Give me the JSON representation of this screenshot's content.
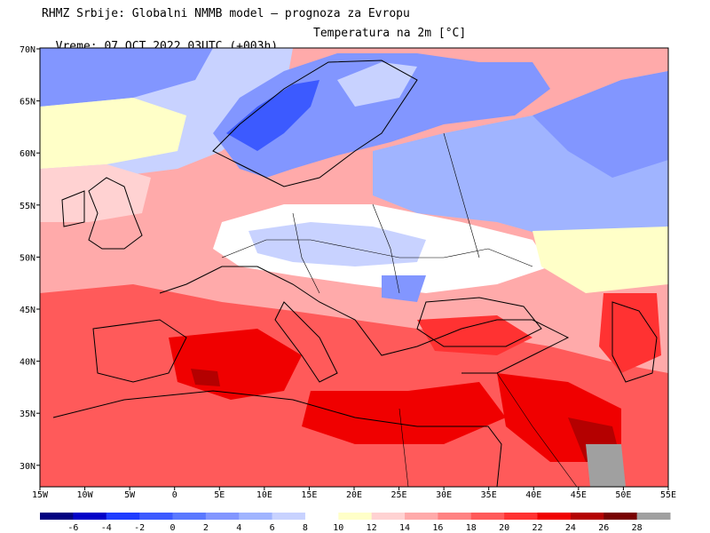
{
  "header": {
    "line1": "RHMZ Srbije: Globalni NMMB model — prognoza za Evropu",
    "line2_left": "Vreme: 07 OCT 2022 03UTC (+003h)",
    "line2_right": "Temperatura na 2m [°C]"
  },
  "axes": {
    "lat_labels": [
      "70N",
      "65N",
      "60N",
      "55N",
      "50N",
      "45N",
      "40N",
      "35N",
      "30N"
    ],
    "lon_labels": [
      "15W",
      "10W",
      "5W",
      "0",
      "5E",
      "10E",
      "15E",
      "20E",
      "25E",
      "30E",
      "35E",
      "40E",
      "45E",
      "50E",
      "55E"
    ]
  },
  "legend": {
    "colors": [
      "#000080",
      "#0000c8",
      "#1e3cff",
      "#3c5aff",
      "#5a78ff",
      "#8296ff",
      "#a0b4ff",
      "#c8d2ff",
      "#ffffff",
      "#ffffc8",
      "#ffd2d2",
      "#ffaaaa",
      "#ff8282",
      "#ff5a5a",
      "#ff3232",
      "#f00000",
      "#b40000",
      "#780000",
      "#a0a0a0"
    ],
    "ticks": [
      "-6",
      "-4",
      "-2",
      "0",
      "2",
      "4",
      "6",
      "8",
      "10",
      "12",
      "14",
      "16",
      "18",
      "20",
      "22",
      "24",
      "26",
      "28"
    ]
  },
  "colors": {
    "cold_deep": "#3c5aff",
    "cold": "#8296ff",
    "cool": "#c8d2ff",
    "neutral": "#ffffff",
    "mild": "#ffffc8",
    "warm": "#ffd2d2",
    "warmer": "#ffaaaa",
    "hot": "#ff5a5a",
    "hotter": "#f00000",
    "hottest": "#b40000",
    "land_outline": "#000000"
  }
}
